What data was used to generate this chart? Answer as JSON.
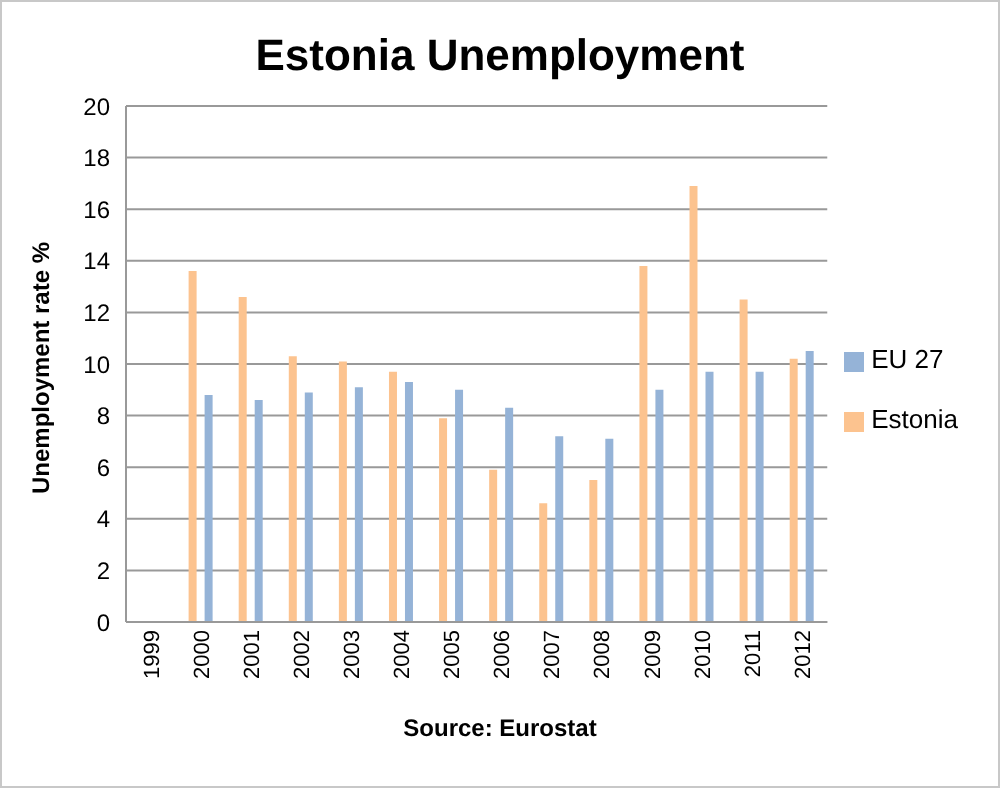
{
  "chart_data": {
    "type": "bar",
    "title": "Estonia Unemployment",
    "ylabel": "Unemployment rate %",
    "categories": [
      "1999",
      "2000",
      "2001",
      "2002",
      "2003",
      "2004",
      "2005",
      "2006",
      "2007",
      "2008",
      "2009",
      "2010",
      "2011",
      "2012"
    ],
    "series": [
      {
        "name": "Estonia",
        "color": "#fcc38f",
        "values": [
          null,
          13.6,
          12.6,
          10.3,
          10.1,
          9.7,
          7.9,
          5.9,
          4.6,
          5.5,
          13.8,
          16.9,
          12.5,
          10.2
        ]
      },
      {
        "name": "EU 27",
        "color": "#95b3d7",
        "values": [
          null,
          8.8,
          8.6,
          8.9,
          9.1,
          9.3,
          9.0,
          8.3,
          7.2,
          7.1,
          9.0,
          9.7,
          9.7,
          10.5
        ]
      }
    ],
    "ylim": [
      0,
      20
    ],
    "yticks": [
      0,
      2,
      4,
      6,
      8,
      10,
      12,
      14,
      16,
      18,
      20
    ],
    "grid": "y",
    "legend": "right",
    "annotations": [
      "Source: Eurostat"
    ]
  }
}
